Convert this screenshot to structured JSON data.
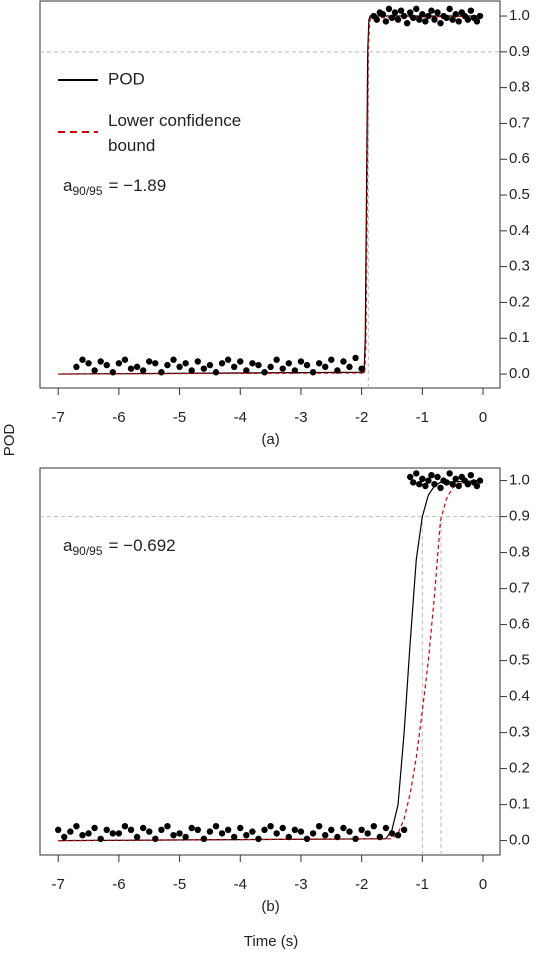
{
  "ylabel": "POD",
  "xlabel": "Time (s)",
  "chart_data": [
    {
      "type": "line",
      "caption": "(a)",
      "xlim": [
        -7.3,
        0.28
      ],
      "ylim": [
        -0.039,
        1.042
      ],
      "xticks": [
        -7,
        -6,
        -5,
        -4,
        -3,
        -2,
        -1,
        0
      ],
      "yticks": [
        {
          "value": 0,
          "label": "0.0"
        },
        0.1,
        0.2,
        0.3,
        0.4,
        0.5,
        0.6,
        0.7,
        0.8,
        0.9,
        {
          "value": 1,
          "label": "1.0"
        }
      ],
      "hlines": [
        0.9
      ],
      "vlines": [
        -1.89
      ],
      "annotation": [
        "a",
        "90/95",
        "= −1.89"
      ],
      "legend": "upper left",
      "series": [
        {
          "name": "POD",
          "color": "#000000",
          "dash": false,
          "x": [
            -7,
            -1.96,
            -1.94,
            -1.92,
            -1.9,
            -1.88,
            -1.86,
            0
          ],
          "values": [
            0,
            0.005,
            0.1,
            0.5,
            0.9,
            0.99,
            1,
            1
          ]
        },
        {
          "name": "Lower confidence bound",
          "color": "#d00000",
          "dash": true,
          "x": [
            -7,
            -1.95,
            -1.93,
            -1.91,
            -1.89,
            -1.87,
            -1.85,
            0
          ],
          "values": [
            0,
            0.003,
            0.08,
            0.45,
            0.9,
            0.98,
            0.995,
            1
          ]
        }
      ],
      "points": {
        "color": "#000000",
        "x": [
          -6.7,
          -6.6,
          -6.5,
          -6.4,
          -6.3,
          -6.2,
          -6.1,
          -6.0,
          -5.9,
          -5.8,
          -5.7,
          -5.6,
          -5.5,
          -5.4,
          -5.3,
          -5.2,
          -5.1,
          -5.0,
          -4.9,
          -4.8,
          -4.7,
          -4.6,
          -4.5,
          -4.4,
          -4.3,
          -4.2,
          -4.1,
          -4.0,
          -3.9,
          -3.8,
          -3.7,
          -3.6,
          -3.5,
          -3.4,
          -3.3,
          -3.2,
          -3.1,
          -3.0,
          -2.9,
          -2.8,
          -2.7,
          -2.6,
          -2.5,
          -2.4,
          -2.3,
          -2.2,
          -2.1,
          -2.0,
          -1.8,
          -1.75,
          -1.7,
          -1.65,
          -1.6,
          -1.55,
          -1.5,
          -1.45,
          -1.4,
          -1.35,
          -1.3,
          -1.25,
          -1.2,
          -1.15,
          -1.1,
          -1.05,
          -1.0,
          -0.95,
          -0.9,
          -0.85,
          -0.8,
          -0.75,
          -0.7,
          -0.65,
          -0.6,
          -0.55,
          -0.5,
          -0.45,
          -0.4,
          -0.35,
          -0.3,
          -0.25,
          -0.2,
          -0.15,
          -0.1,
          -0.05
        ],
        "values": [
          0.02,
          0.04,
          0.03,
          0.01,
          0.035,
          0.025,
          0.005,
          0.03,
          0.04,
          0.015,
          0.02,
          0.01,
          0.035,
          0.03,
          0.005,
          0.025,
          0.04,
          0.02,
          0.03,
          0.01,
          0.035,
          0.015,
          0.025,
          0.005,
          0.03,
          0.04,
          0.02,
          0.035,
          0.01,
          0.03,
          0.025,
          0.005,
          0.02,
          0.04,
          0.015,
          0.03,
          0.01,
          0.035,
          0.025,
          0.005,
          0.03,
          0.02,
          0.04,
          0.01,
          0.035,
          0.02,
          0.045,
          0.015,
          1.0,
          0.99,
          1.01,
          1.005,
          0.985,
          1.02,
          0.995,
          1.01,
          0.99,
          1.015,
          1.0,
          0.98,
          1.01,
          0.995,
          1.02,
          0.99,
          1.005,
          0.985,
          1.0,
          1.015,
          0.99,
          1.01,
          0.98,
          1.0,
          0.995,
          1.02,
          0.99,
          1.005,
          0.985,
          1.01,
          1.0,
          0.99,
          1.015,
          0.995,
          0.985,
          1.0
        ]
      }
    },
    {
      "type": "line",
      "caption": "(b)",
      "xlim": [
        -7.3,
        0.28
      ],
      "ylim": [
        -0.04,
        1.035
      ],
      "xticks": [
        -7,
        -6,
        -5,
        -4,
        -3,
        -2,
        -1,
        0
      ],
      "yticks": [
        {
          "value": 0,
          "label": "0.0"
        },
        0.1,
        0.2,
        0.3,
        0.4,
        0.5,
        0.6,
        0.7,
        0.8,
        0.9,
        {
          "value": 1,
          "label": "1.0"
        }
      ],
      "hlines": [
        0.9
      ],
      "vlines": [
        -1.0,
        -0.692
      ],
      "annotation": [
        "a",
        "90/95",
        "= −0.692"
      ],
      "series": [
        {
          "color": "#000000",
          "dash": false,
          "x": [
            -7,
            -1.6,
            -1.5,
            -1.4,
            -1.3,
            -1.2,
            -1.1,
            -1.0,
            -0.9,
            -0.8,
            -0.7,
            0
          ],
          "values": [
            0,
            0.005,
            0.03,
            0.1,
            0.3,
            0.55,
            0.78,
            0.9,
            0.96,
            0.985,
            0.995,
            1
          ]
        },
        {
          "color": "#d00000",
          "dash": true,
          "x": [
            -7,
            -1.5,
            -1.4,
            -1.3,
            -1.2,
            -1.1,
            -1.0,
            -0.9,
            -0.8,
            -0.7,
            -0.6,
            -0.5,
            -0.4,
            -0.3,
            0
          ],
          "values": [
            0,
            0.005,
            0.02,
            0.06,
            0.13,
            0.23,
            0.36,
            0.5,
            0.68,
            0.89,
            0.95,
            0.98,
            0.99,
            0.995,
            0.995
          ]
        }
      ],
      "points": {
        "color": "#000000",
        "x": [
          -7.0,
          -6.9,
          -6.8,
          -6.7,
          -6.6,
          -6.5,
          -6.4,
          -6.3,
          -6.2,
          -6.1,
          -6.0,
          -5.9,
          -5.8,
          -5.7,
          -5.6,
          -5.5,
          -5.4,
          -5.3,
          -5.2,
          -5.1,
          -5.0,
          -4.9,
          -4.8,
          -4.7,
          -4.6,
          -4.5,
          -4.4,
          -4.3,
          -4.2,
          -4.1,
          -4.0,
          -3.9,
          -3.8,
          -3.7,
          -3.6,
          -3.5,
          -3.4,
          -3.3,
          -3.2,
          -3.1,
          -3.0,
          -2.9,
          -2.8,
          -2.7,
          -2.6,
          -2.5,
          -2.4,
          -2.3,
          -2.2,
          -2.1,
          -2.0,
          -1.9,
          -1.8,
          -1.7,
          -1.6,
          -1.5,
          -1.4,
          -1.3,
          -1.2,
          -1.15,
          -1.1,
          -1.05,
          -1.0,
          -0.95,
          -0.9,
          -0.85,
          -0.8,
          -0.75,
          -0.7,
          -0.65,
          -0.6,
          -0.55,
          -0.5,
          -0.45,
          -0.4,
          -0.35,
          -0.3,
          -0.25,
          -0.2,
          -0.15,
          -0.1,
          -0.05
        ],
        "values": [
          0.03,
          0.01,
          0.025,
          0.04,
          0.015,
          0.02,
          0.035,
          0.005,
          0.03,
          0.02,
          0.02,
          0.04,
          0.03,
          0.01,
          0.035,
          0.025,
          0.005,
          0.03,
          0.04,
          0.015,
          0.02,
          0.01,
          0.035,
          0.03,
          0.005,
          0.025,
          0.04,
          0.02,
          0.03,
          0.01,
          0.035,
          0.015,
          0.025,
          0.005,
          0.03,
          0.04,
          0.02,
          0.035,
          0.01,
          0.03,
          0.025,
          0.005,
          0.02,
          0.04,
          0.015,
          0.03,
          0.01,
          0.035,
          0.025,
          0.005,
          0.03,
          0.02,
          0.04,
          0.01,
          0.035,
          0.02,
          0.015,
          0.03,
          1.01,
          0.995,
          1.02,
          0.99,
          1.005,
          0.985,
          1.0,
          1.015,
          0.99,
          1.01,
          0.98,
          1.0,
          0.995,
          1.02,
          0.99,
          1.005,
          0.985,
          1.01,
          1.0,
          0.99,
          1.015,
          0.995,
          0.985,
          1.0
        ]
      }
    }
  ]
}
